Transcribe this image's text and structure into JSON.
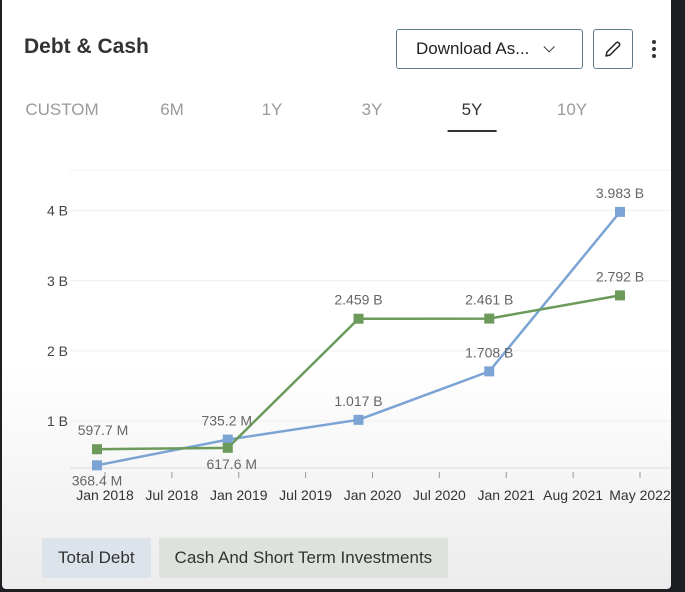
{
  "header": {
    "title": "Debt & Cash",
    "download_label": "Download As...",
    "edit_icon": "pencil-icon",
    "more_icon": "vertical-dots-icon"
  },
  "tabs": [
    {
      "label": "CUSTOM"
    },
    {
      "label": "6M"
    },
    {
      "label": "1Y"
    },
    {
      "label": "3Y"
    },
    {
      "label": "5Y",
      "active": true
    },
    {
      "label": "10Y"
    }
  ],
  "chart_data": {
    "type": "line",
    "title": "Debt & Cash",
    "x": [
      "Jan 2018",
      "Jan 2019",
      "Jan 2020",
      "Jan 2021",
      "May 2022"
    ],
    "x_tick_labels": [
      "Jan 2018",
      "Jul 2018",
      "Jan 2019",
      "Jul 2019",
      "Jan 2020",
      "Jul 2020",
      "Jan 2021",
      "Aug 2021",
      "May 2022"
    ],
    "y_tick_labels": [
      "1 B",
      "2 B",
      "3 B",
      "4 B"
    ],
    "y_ticks": [
      1,
      2,
      3,
      4
    ],
    "ylim": [
      0.33,
      4.58
    ],
    "yunit": "B",
    "grid": true,
    "legend": "bottom-left",
    "series": [
      {
        "name": "Total Debt",
        "color": "#7ba3d4",
        "legend_bg": "#dde3ea",
        "values": [
          0.3684,
          0.7352,
          1.017,
          1.708,
          3.983
        ],
        "labels": [
          "368.4 M",
          "735.2 M",
          "1.017 B",
          "1.708 B",
          "3.983 B"
        ]
      },
      {
        "name": "Cash And Short Term Investments",
        "color": "#6b9a5a",
        "legend_bg": "#dee2dc",
        "values": [
          0.5977,
          0.6176,
          2.459,
          2.461,
          2.792
        ],
        "labels": [
          "597.7 M",
          "617.6 M",
          "2.459 B",
          "2.461 B",
          "2.792 B"
        ]
      }
    ]
  }
}
